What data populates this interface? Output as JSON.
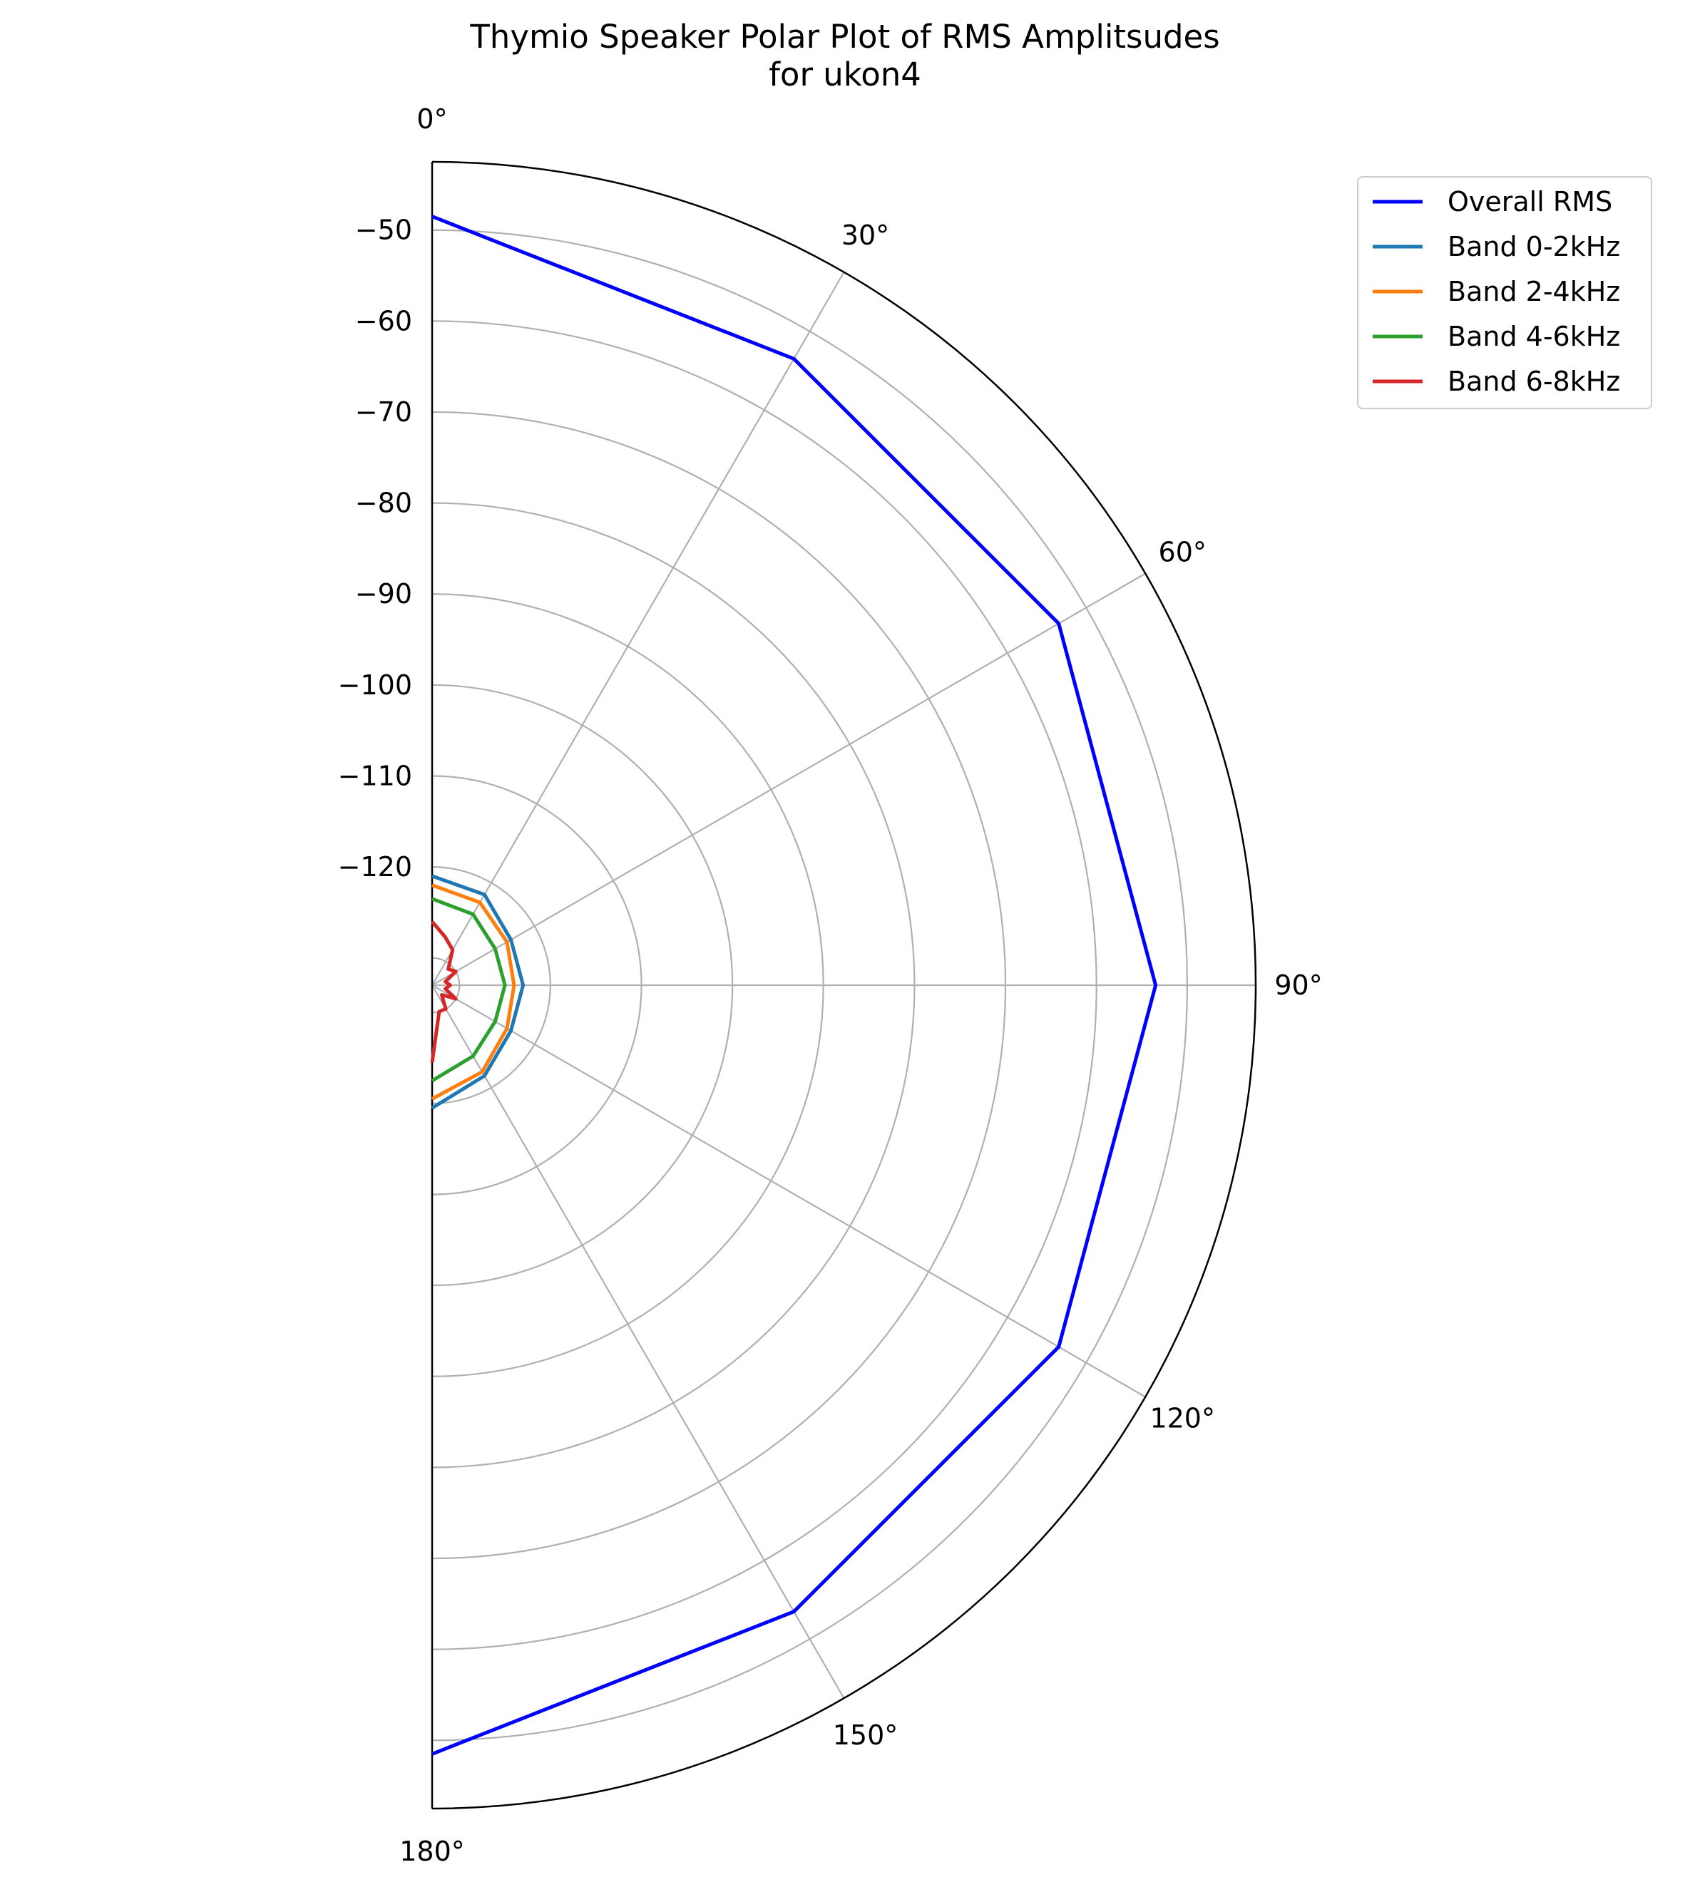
{
  "chart_data": {
    "type": "polar-line",
    "title": "Thymio Speaker Polar Plot of RMS Amplitsudes",
    "subtitle": "for ukon4",
    "theta_ticks": [
      0,
      30,
      60,
      90,
      120,
      150,
      180
    ],
    "theta_tick_labels": [
      "0°",
      "30°",
      "60°",
      "90°",
      "120°",
      "150°",
      "180°"
    ],
    "theta_range": [
      0,
      180
    ],
    "r_range": [
      -133,
      -42.5
    ],
    "r_ticks": [
      -50,
      -60,
      -70,
      -80,
      -90,
      -100,
      -110,
      -120
    ],
    "r_tick_labels": [
      "−50",
      "−60",
      "−70",
      "−80",
      "−90",
      "−100",
      "−110",
      "−120"
    ],
    "r_grid_extra": [
      -130
    ],
    "grid": true,
    "legend_position": "upper right, outside plot",
    "series": [
      {
        "name": "Overall RMS",
        "color": "#0000ff",
        "theta": [
          0,
          30,
          60,
          90,
          120,
          150,
          180
        ],
        "r": [
          -48.5,
          -53.5,
          -53.5,
          -53.5,
          -53.5,
          -53.5,
          -48.5
        ]
      },
      {
        "name": "Band 0-2kHz",
        "color": "#1f77b4",
        "theta": [
          0,
          30,
          60,
          90,
          120,
          150,
          180
        ],
        "r": [
          -121,
          -121.5,
          -123,
          -123,
          -123,
          -121.5,
          -119.5
        ]
      },
      {
        "name": "Band 2-4kHz",
        "color": "#ff7f0e",
        "theta": [
          0,
          30,
          60,
          90,
          120,
          150,
          180
        ],
        "r": [
          -122,
          -122.5,
          -123.5,
          -124,
          -123.5,
          -122,
          -120.5
        ]
      },
      {
        "name": "Band 4-6kHz",
        "color": "#2ca02c",
        "theta": [
          0,
          30,
          60,
          90,
          120,
          150,
          180
        ],
        "r": [
          -123.5,
          -124,
          -125,
          -125,
          -125,
          -124,
          -122.5
        ]
      },
      {
        "name": "Band 6-8kHz",
        "color": "#d62728",
        "theta": [
          0,
          15,
          30,
          45,
          60,
          75,
          90,
          105,
          120,
          135,
          150,
          165,
          180
        ],
        "r": [
          -126,
          -127.5,
          -128.5,
          -130.5,
          -130,
          -131.5,
          -131,
          -131.5,
          -130,
          -131.5,
          -130,
          -130,
          -124.5
        ]
      }
    ]
  }
}
